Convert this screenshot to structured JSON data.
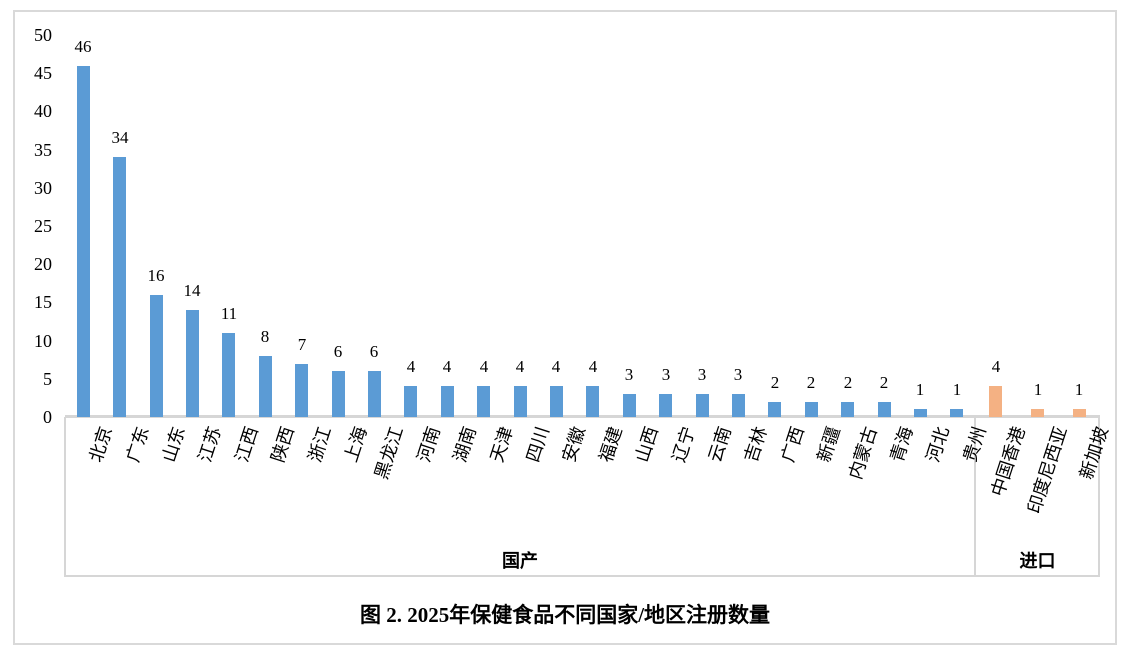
{
  "chart_data": {
    "type": "bar",
    "title": "图 2. 2025年保健食品不同国家/地区注册数量",
    "xlabel": "",
    "ylabel": "",
    "legend_position": "none",
    "grid": false,
    "y_axis": {
      "min": 0,
      "max": 50,
      "step": 5,
      "ticks": [
        0,
        5,
        10,
        15,
        20,
        25,
        30,
        35,
        40,
        45,
        50
      ]
    },
    "axis_line_color": "#d6d6d6",
    "groups": [
      {
        "label": "国产",
        "bar_color": "#5B9BD5",
        "categories": [
          "北京",
          "广东",
          "山东",
          "江苏",
          "江西",
          "陕西",
          "浙江",
          "上海",
          "黑龙江",
          "河南",
          "湖南",
          "天津",
          "四川",
          "安徽",
          "福建",
          "山西",
          "辽宁",
          "云南",
          "吉林",
          "广西",
          "新疆",
          "内蒙古",
          "青海",
          "河北",
          "贵州"
        ],
        "values": [
          46,
          34,
          16,
          14,
          11,
          8,
          7,
          6,
          6,
          4,
          4,
          4,
          4,
          4,
          4,
          3,
          3,
          3,
          3,
          2,
          2,
          2,
          2,
          1,
          1
        ]
      },
      {
        "label": "进口",
        "bar_color": "#F4B183",
        "categories": [
          "中国香港",
          "印度尼西亚",
          "新加坡"
        ],
        "values": [
          4,
          1,
          1
        ]
      }
    ]
  }
}
